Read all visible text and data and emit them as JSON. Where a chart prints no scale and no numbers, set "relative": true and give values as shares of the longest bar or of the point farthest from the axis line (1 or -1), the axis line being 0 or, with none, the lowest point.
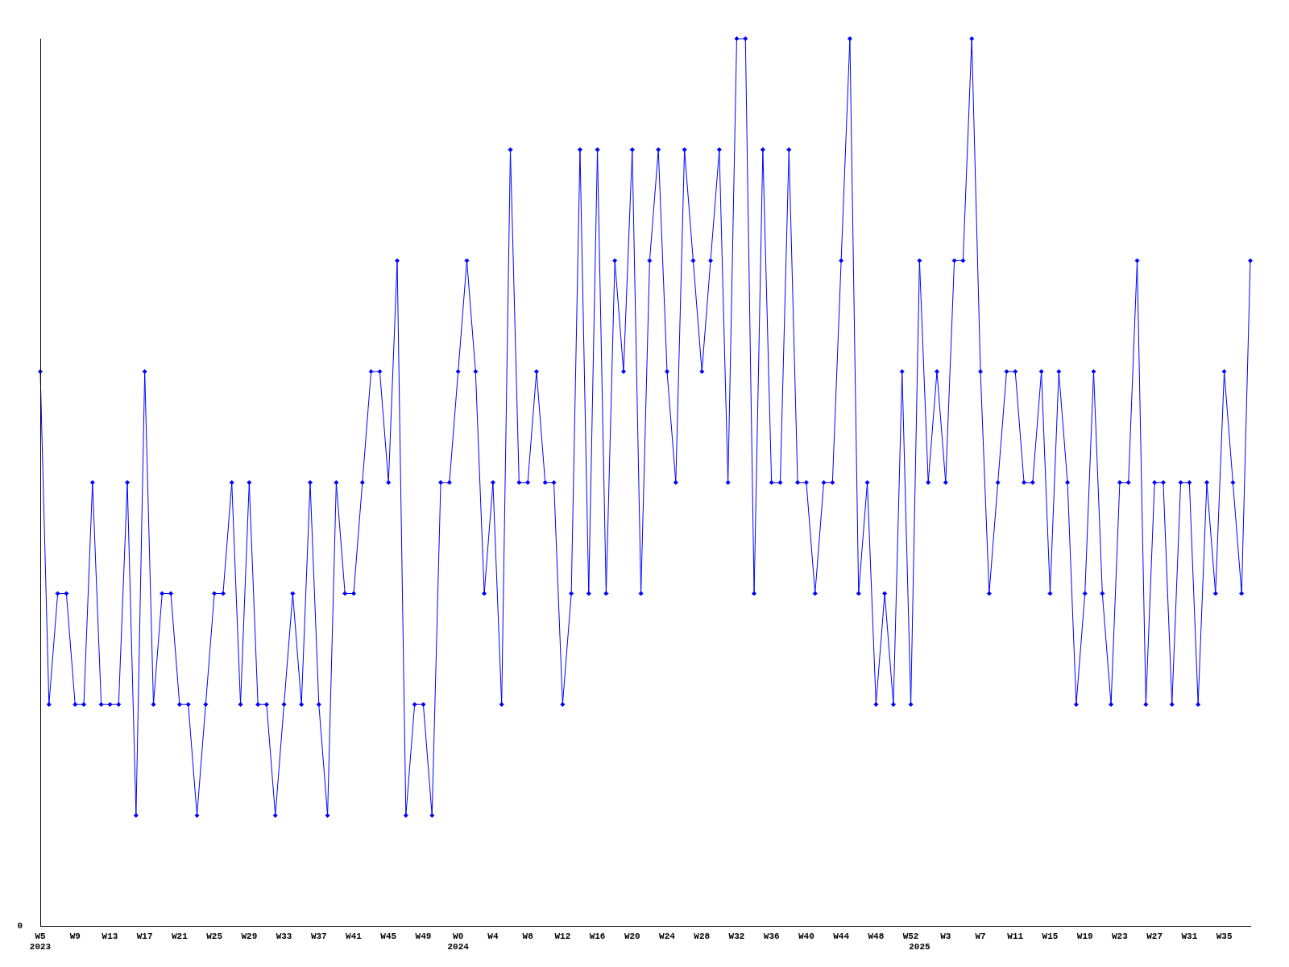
{
  "chart_data": {
    "type": "line",
    "categories": [
      "W5\n2023",
      null,
      null,
      null,
      "W9",
      null,
      null,
      null,
      "W13",
      null,
      null,
      null,
      "W17",
      null,
      null,
      null,
      "W21",
      null,
      null,
      null,
      "W25",
      null,
      null,
      null,
      "W29",
      null,
      null,
      null,
      "W33",
      null,
      null,
      null,
      "W37",
      null,
      null,
      null,
      "W41",
      null,
      null,
      null,
      "W45",
      null,
      null,
      null,
      "W49",
      null,
      null,
      null,
      "W0\n2024",
      null,
      null,
      null,
      "W4",
      null,
      null,
      null,
      "W8",
      null,
      null,
      null,
      "W12",
      null,
      null,
      null,
      "W16",
      null,
      null,
      null,
      "W20",
      null,
      null,
      null,
      "W24",
      null,
      null,
      null,
      "W28",
      null,
      null,
      null,
      "W32",
      null,
      null,
      null,
      "W36",
      null,
      null,
      null,
      "W40",
      null,
      null,
      null,
      "W44",
      null,
      null,
      null,
      "W48",
      null,
      null,
      null,
      "W52",
      "\n2025",
      null,
      null,
      "W3",
      null,
      null,
      null,
      "W7",
      null,
      null,
      null,
      "W11",
      null,
      null,
      null,
      "W15",
      null,
      null,
      null,
      "W19",
      null,
      null,
      null,
      "W23",
      null,
      null,
      null,
      "W27",
      null,
      null,
      null,
      "W31",
      null,
      null,
      null,
      "W35",
      null,
      null,
      null
    ],
    "values": [
      0.625,
      0.25,
      0.375,
      0.375,
      0.25,
      0.25,
      0.5,
      0.25,
      0.25,
      0.25,
      0.5,
      0.125,
      0.625,
      0.25,
      0.375,
      0.375,
      0.25,
      0.25,
      0.125,
      0.25,
      0.375,
      0.375,
      0.5,
      0.25,
      0.5,
      0.25,
      0.25,
      0.125,
      0.25,
      0.375,
      0.25,
      0.5,
      0.25,
      0.125,
      0.5,
      0.375,
      0.375,
      0.5,
      0.625,
      0.625,
      0.5,
      0.75,
      0.125,
      0.25,
      0.25,
      0.125,
      0.5,
      0.5,
      0.625,
      0.75,
      0.625,
      0.375,
      0.5,
      0.25,
      0.875,
      0.5,
      0.5,
      0.625,
      0.5,
      0.5,
      0.25,
      0.375,
      0.875,
      0.375,
      0.875,
      0.375,
      0.75,
      0.625,
      0.875,
      0.375,
      0.75,
      0.875,
      0.625,
      0.5,
      0.875,
      0.75,
      0.625,
      0.75,
      0.875,
      0.5,
      1,
      1,
      0.375,
      0.875,
      0.5,
      0.5,
      0.875,
      0.5,
      0.5,
      0.375,
      0.5,
      0.5,
      0.75,
      1,
      0.375,
      0.5,
      0.25,
      0.375,
      0.25,
      0.625,
      0.25,
      0.75,
      0.5,
      0.625,
      0.5,
      0.75,
      0.75,
      1,
      0.625,
      0.375,
      0.5,
      0.625,
      0.625,
      0.5,
      0.5,
      0.625,
      0.375,
      0.625,
      0.5,
      0.25,
      0.375,
      0.625,
      0.375,
      0.25,
      0.5,
      0.5,
      0.75,
      0.25,
      0.5,
      0.5,
      0.25,
      0.5,
      0.5,
      0.25,
      0.5,
      0.375,
      0.625,
      0.5,
      0.375,
      0.75
    ],
    "color": "#0000ff",
    "relative": true,
    "marker": "diamond",
    "annotations": [
      "0"
    ]
  }
}
